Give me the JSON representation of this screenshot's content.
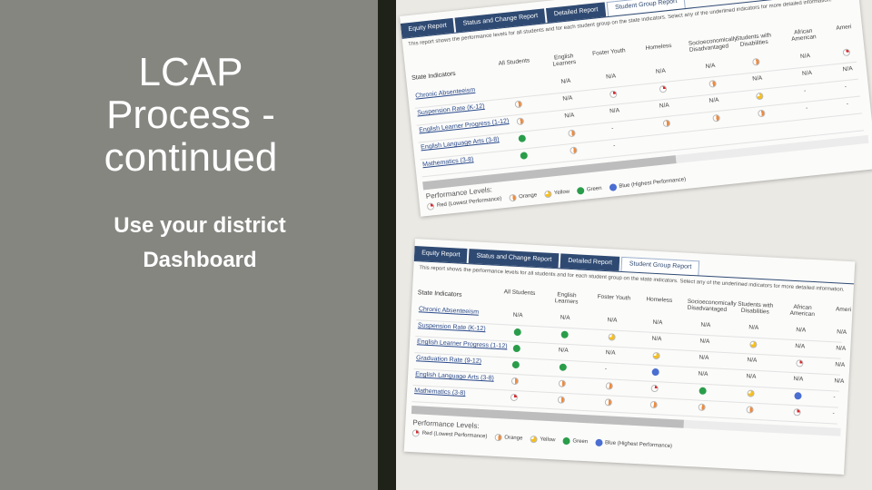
{
  "slide": {
    "title_lines": [
      "LCAP",
      "Process -",
      "continued"
    ],
    "subtitle_lines": [
      "Use your district",
      "Dashboard"
    ]
  },
  "screenshot1": {
    "tabs": [
      "Equity Report",
      "Status and Change Report",
      "Detailed Report",
      "Student Group Report"
    ],
    "intro": "This report shows the performance levels for all students and for each student group on the state indicators. Select any of the underlined indicators for more detailed information.",
    "state_label": "State Indicators",
    "columns": [
      "All Students",
      "English Learners",
      "Foster Youth",
      "Homeless",
      "Socioeconomically Disadvantaged",
      "Students with Disabilities",
      "African American",
      "Ameri"
    ],
    "indicators": [
      "Chronic Absenteeism",
      "Suspension Rate (K-12)",
      "English Learner Progress (1-12)",
      "English Language Arts (3-8)",
      "Mathematics (3-8)"
    ],
    "cells": [
      [
        "",
        "N/A",
        "N/A",
        "N/A",
        "N/A",
        "orange",
        "N/A",
        "red"
      ],
      [
        "orange",
        "N/A",
        "red",
        "red",
        "orange",
        "N/A",
        "N/A",
        "N/A"
      ],
      [
        "orange",
        "N/A",
        "N/A",
        "N/A",
        "N/A",
        "yellow",
        "-",
        "-"
      ],
      [
        "green",
        "orange",
        "-",
        "orange",
        "orange",
        "orange",
        "-",
        "-"
      ],
      [
        "green",
        "orange",
        "-",
        "",
        "",
        "",
        "",
        ""
      ]
    ],
    "legend_title": "Performance Levels:",
    "legend": [
      "Red (Lowest Performance)",
      "Orange",
      "Yellow",
      "Green",
      "Blue (Highest Performance)"
    ]
  },
  "screenshot2": {
    "tabs": [
      "Equity Report",
      "Status and Change Report",
      "Detailed Report",
      "Student Group Report"
    ],
    "intro": "This report shows the performance levels for all students and for each student group on the state indicators. Select any of the underlined indicators for more detailed information.",
    "state_label": "State Indicators",
    "columns": [
      "All Students",
      "English Learners",
      "Foster Youth",
      "Homeless",
      "Socioeconomically Disadvantaged",
      "Students with Disabilities",
      "African American",
      "Ameri"
    ],
    "indicators": [
      "Chronic Absenteeism",
      "Suspension Rate (K-12)",
      "English Learner Progress (1-12)",
      "Graduation Rate (9-12)",
      "English Language Arts (3-8)",
      "Mathematics (3-8)"
    ],
    "cells": [
      [
        "N/A",
        "N/A",
        "N/A",
        "N/A",
        "N/A",
        "N/A",
        "N/A",
        "N/A"
      ],
      [
        "green",
        "green",
        "yellow",
        "N/A",
        "N/A",
        "yellow",
        "N/A",
        "N/A"
      ],
      [
        "green",
        "N/A",
        "N/A",
        "yellow",
        "N/A",
        "N/A",
        "red",
        "N/A"
      ],
      [
        "green",
        "green",
        "-",
        "blue",
        "N/A",
        "N/A",
        "N/A",
        "N/A"
      ],
      [
        "orange",
        "orange",
        "orange",
        "red",
        "green",
        "yellow",
        "blue",
        "-"
      ],
      [
        "red",
        "orange",
        "orange",
        "orange",
        "orange",
        "orange",
        "red",
        "-"
      ]
    ],
    "legend_title": "Performance Levels:",
    "legend": [
      "Red (Lowest Performance)",
      "Orange",
      "Yellow",
      "Green",
      "Blue (Highest Performance)"
    ]
  },
  "colors": {
    "left_panel": "#858680",
    "divider": "#1e2218",
    "right_panel": "#ebe9e4",
    "tab_blue": "#2f4a72",
    "link_blue": "#2a4a8a"
  }
}
